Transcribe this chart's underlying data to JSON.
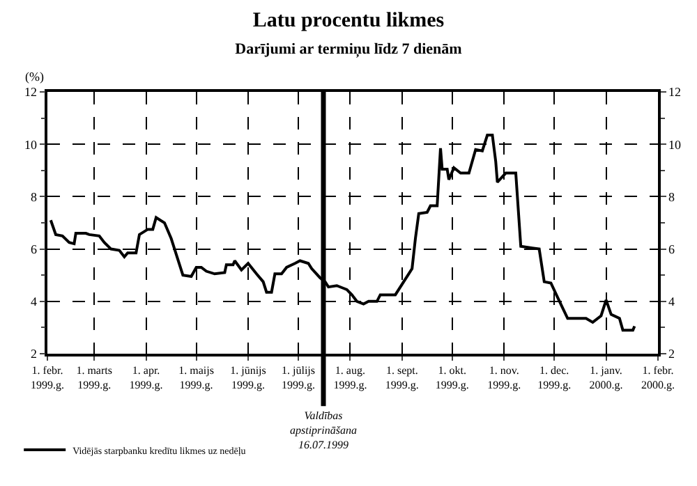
{
  "chart_data": {
    "type": "line",
    "title": "Latu procentu likmes",
    "subtitle": "Darījumi ar termiņu līdz 7 dienām",
    "ylabel": "(%)",
    "x": [
      "1999-02-03",
      "1999-02-06",
      "1999-02-10",
      "1999-02-14",
      "1999-02-17",
      "1999-02-18",
      "1999-02-24",
      "1999-02-26",
      "1999-03-04",
      "1999-03-07",
      "1999-03-11",
      "1999-03-16",
      "1999-03-19",
      "1999-03-21",
      "1999-03-26",
      "1999-03-28",
      "1999-04-02",
      "1999-04-05",
      "1999-04-07",
      "1999-04-12",
      "1999-04-16",
      "1999-04-19",
      "1999-04-23",
      "1999-04-28",
      "1999-05-01",
      "1999-05-04",
      "1999-05-07",
      "1999-05-12",
      "1999-05-18",
      "1999-05-19",
      "1999-05-23",
      "1999-05-24",
      "1999-05-28",
      "1999-06-01",
      "1999-06-06",
      "1999-06-10",
      "1999-06-12",
      "1999-06-15",
      "1999-06-17",
      "1999-06-21",
      "1999-06-24",
      "1999-06-29",
      "1999-07-02",
      "1999-07-07",
      "1999-07-09",
      "1999-07-14",
      "1999-07-17",
      "1999-07-19",
      "1999-07-24",
      "1999-07-28",
      "1999-07-30",
      "1999-08-02",
      "1999-08-05",
      "1999-08-09",
      "1999-08-12",
      "1999-08-17",
      "1999-08-19",
      "1999-08-28",
      "1999-09-02",
      "1999-09-05",
      "1999-09-07",
      "1999-09-09",
      "1999-09-11",
      "1999-09-16",
      "1999-09-18",
      "1999-09-22",
      "1999-09-24",
      "1999-09-25",
      "1999-09-28",
      "1999-09-29",
      "1999-10-02",
      "1999-10-06",
      "1999-10-11",
      "1999-10-15",
      "1999-10-19",
      "1999-10-22",
      "1999-10-25",
      "1999-10-27",
      "1999-10-28",
      "1999-11-02",
      "1999-11-08",
      "1999-11-11",
      "1999-11-22",
      "1999-11-25",
      "1999-11-29",
      "1999-12-03",
      "1999-12-09",
      "1999-12-20",
      "1999-12-24",
      "1999-12-29",
      "2000-01-01",
      "2000-01-04",
      "2000-01-09",
      "2000-01-11",
      "2000-01-17",
      "2000-01-18"
    ],
    "series": [
      {
        "name": "Vidējās starpbanku kredītu likmes uz nedēļu",
        "color": "#000000",
        "values": [
          7.1,
          6.55,
          6.5,
          6.25,
          6.2,
          6.6,
          6.6,
          6.55,
          6.5,
          6.25,
          6.0,
          5.95,
          5.7,
          5.85,
          5.85,
          6.55,
          6.75,
          6.75,
          7.2,
          7.0,
          6.4,
          5.8,
          5.0,
          4.95,
          5.3,
          5.3,
          5.15,
          5.05,
          5.1,
          5.4,
          5.4,
          5.55,
          5.2,
          5.45,
          5.05,
          4.75,
          4.35,
          4.35,
          5.05,
          5.05,
          5.3,
          5.45,
          5.55,
          5.45,
          5.25,
          4.9,
          4.75,
          4.55,
          4.6,
          4.5,
          4.45,
          4.25,
          4.0,
          3.9,
          4.0,
          4.0,
          4.25,
          4.25,
          4.75,
          5.05,
          5.25,
          6.4,
          7.35,
          7.4,
          7.65,
          7.65,
          9.85,
          9.05,
          9.05,
          8.65,
          9.1,
          8.9,
          8.9,
          9.8,
          9.75,
          10.35,
          10.35,
          9.35,
          8.55,
          8.9,
          8.9,
          6.1,
          6.0,
          4.75,
          4.7,
          4.15,
          3.35,
          3.35,
          3.2,
          3.45,
          4.05,
          3.5,
          3.35,
          2.9,
          2.9,
          3.05
        ]
      }
    ],
    "xlim": [
      "1999-02-01",
      "2000-02-01"
    ],
    "xticks": [
      {
        "value": "1999-02-01",
        "label": "1. febr.\n1999.g."
      },
      {
        "value": "1999-03-01",
        "label": "1. marts\n1999.g."
      },
      {
        "value": "1999-04-01",
        "label": "1. apr.\n1999.g."
      },
      {
        "value": "1999-05-01",
        "label": "1. maijs\n1999.g."
      },
      {
        "value": "1999-06-01",
        "label": "1. jūnijs\n1999.g."
      },
      {
        "value": "1999-07-01",
        "label": "1. jūlijs\n1999.g."
      },
      {
        "value": "1999-08-01",
        "label": "1. aug.\n1999.g."
      },
      {
        "value": "1999-09-01",
        "label": "1. sept.\n1999.g."
      },
      {
        "value": "1999-10-01",
        "label": "1. okt.\n1999.g."
      },
      {
        "value": "1999-11-01",
        "label": "1. nov.\n1999.g."
      },
      {
        "value": "1999-12-01",
        "label": "1. dec.\n1999.g."
      },
      {
        "value": "2000-01-01",
        "label": "1. janv.\n2000.g."
      },
      {
        "value": "2000-02-01",
        "label": "1. febr.\n2000.g."
      }
    ],
    "ylim": [
      2,
      12
    ],
    "yticks": [
      2,
      {
        "value": 3,
        "label": null
      },
      4,
      {
        "value": 5,
        "label": null
      },
      6,
      {
        "value": 7,
        "label": null
      },
      8,
      {
        "value": 9,
        "label": null
      },
      10,
      {
        "value": 11,
        "label": null
      },
      12
    ],
    "y2lim": [
      2,
      12
    ],
    "y2ticks": [
      2,
      {
        "value": 3,
        "label": null
      },
      4,
      {
        "value": 5,
        "label": null
      },
      6,
      {
        "value": 7,
        "label": null
      },
      8,
      {
        "value": 9,
        "label": null
      },
      10,
      {
        "value": 11,
        "label": null
      },
      12
    ],
    "ref_lines": [
      {
        "axis": "x",
        "value": "1999-07-16",
        "label": "Valdības\napstiprināšana\n16.07.1999",
        "color": "#000000"
      }
    ],
    "grid": true,
    "legend": "bottom left",
    "line_style": "solid",
    "marker": "none"
  }
}
